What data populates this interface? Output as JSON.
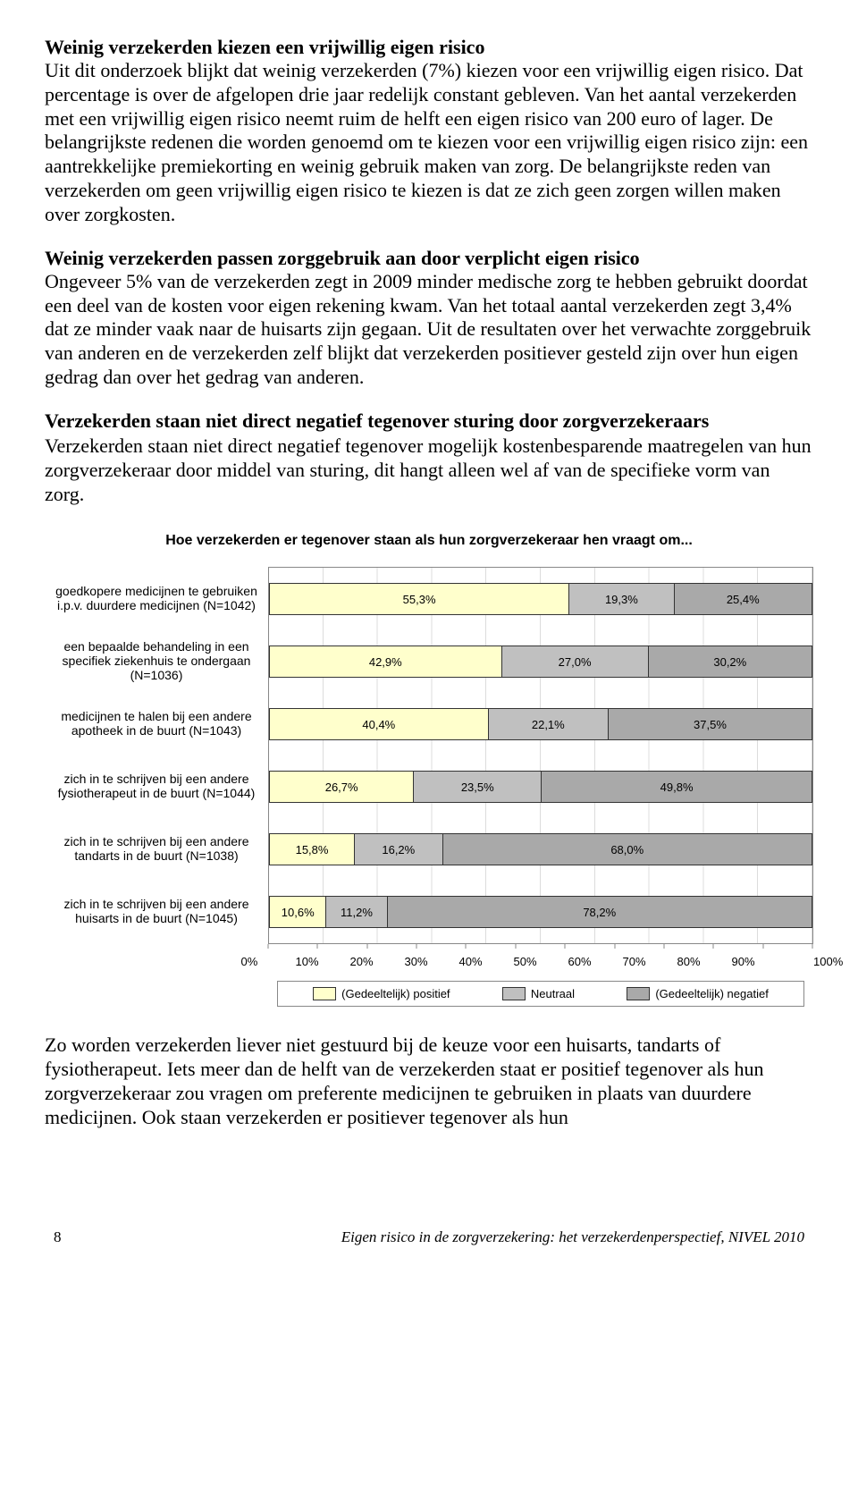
{
  "section1": {
    "heading": "Weinig verzekerden kiezen een vrijwillig eigen risico",
    "body": "Uit dit onderzoek blijkt dat weinig verzekerden (7%) kiezen voor een vrijwillig eigen risico. Dat percentage is over de afgelopen drie jaar redelijk constant gebleven. Van het aantal verzekerden met een vrijwillig eigen risico neemt ruim de helft een eigen risico van 200 euro of lager. De belangrijkste redenen die worden genoemd om te kiezen voor een vrijwillig eigen risico zijn: een aantrekkelijke premiekorting en weinig gebruik maken van zorg. De belangrijkste reden van verzekerden om geen vrijwillig eigen risico te kiezen is dat ze zich geen zorgen willen maken over zorgkosten."
  },
  "section2": {
    "heading": "Weinig verzekerden passen zorggebruik aan door verplicht eigen risico",
    "body": "Ongeveer 5% van de verzekerden zegt in 2009 minder medische zorg te hebben gebruikt doordat een deel van de kosten voor eigen rekening kwam. Van het totaal aantal verzekerden zegt 3,4% dat ze minder vaak naar de huisarts zijn gegaan. Uit de resultaten over het verwachte zorggebruik van anderen en de verzekerden zelf blijkt dat verzekerden positiever gesteld zijn over hun eigen gedrag dan over het gedrag van anderen."
  },
  "section3": {
    "heading": "Verzekerden staan niet direct negatief tegenover sturing door zorgverzekeraars",
    "body": "Verzekerden staan niet direct negatief tegenover mogelijk kostenbesparende maatregelen van hun zorgverzekeraar door middel van sturing, dit hangt alleen wel af van de specifieke vorm van zorg."
  },
  "chart": {
    "title": "Hoe verzekerden er tegenover staan als hun zorgverzekeraar hen vraagt om...",
    "type": "stacked-bar-horizontal",
    "colors": {
      "positive": "#ffffcc",
      "neutral": "#c0c0c0",
      "negative": "#a9a9a9",
      "grid": "#dcdcdc",
      "border": "#888888"
    },
    "series_labels": {
      "positive": "(Gedeeltelijk) positief",
      "neutral": "Neutraal",
      "negative": "(Gedeeltelijk) negatief"
    },
    "xticks": [
      "0%",
      "10%",
      "20%",
      "30%",
      "40%",
      "50%",
      "60%",
      "70%",
      "80%",
      "90%",
      "100%"
    ],
    "rows": [
      {
        "label": "goedkopere medicijnen te gebruiken i.p.v. duurdere medicijnen (N=1042)",
        "positive": 55.3,
        "neutral": 19.3,
        "negative": 25.4,
        "pos_t": "55,3%",
        "neu_t": "19,3%",
        "neg_t": "25,4%"
      },
      {
        "label": "een bepaalde behandeling in een specifiek ziekenhuis te ondergaan (N=1036)",
        "positive": 42.9,
        "neutral": 27.0,
        "negative": 30.2,
        "pos_t": "42,9%",
        "neu_t": "27,0%",
        "neg_t": "30,2%"
      },
      {
        "label": "medicijnen te halen bij een andere apotheek in de buurt (N=1043)",
        "positive": 40.4,
        "neutral": 22.1,
        "negative": 37.5,
        "pos_t": "40,4%",
        "neu_t": "22,1%",
        "neg_t": "37,5%"
      },
      {
        "label": "zich in te schrijven bij een andere fysiotherapeut in de buurt (N=1044)",
        "positive": 26.7,
        "neutral": 23.5,
        "negative": 49.8,
        "pos_t": "26,7%",
        "neu_t": "23,5%",
        "neg_t": "49,8%"
      },
      {
        "label": "zich in te schrijven bij een andere tandarts in de buurt (N=1038)",
        "positive": 15.8,
        "neutral": 16.2,
        "negative": 68.0,
        "pos_t": "15,8%",
        "neu_t": "16,2%",
        "neg_t": "68,0%"
      },
      {
        "label": "zich in te schrijven bij een andere huisarts in de buurt (N=1045)",
        "positive": 10.6,
        "neutral": 11.2,
        "negative": 78.2,
        "pos_t": "10,6%",
        "neu_t": "11,2%",
        "neg_t": "78,2%"
      }
    ]
  },
  "closing": "Zo worden verzekerden liever niet gestuurd bij de keuze voor een huisarts, tandarts of fysiotherapeut. Iets meer dan de helft van de verzekerden staat er positief tegenover als hun zorgverzekeraar zou vragen om preferente medicijnen te gebruiken in plaats van duurdere medicijnen. Ook staan verzekerden er positiever tegenover als hun",
  "footer": {
    "page": "8",
    "citation": "Eigen risico in de zorgverzekering: het verzekerdenperspectief, NIVEL 2010"
  }
}
